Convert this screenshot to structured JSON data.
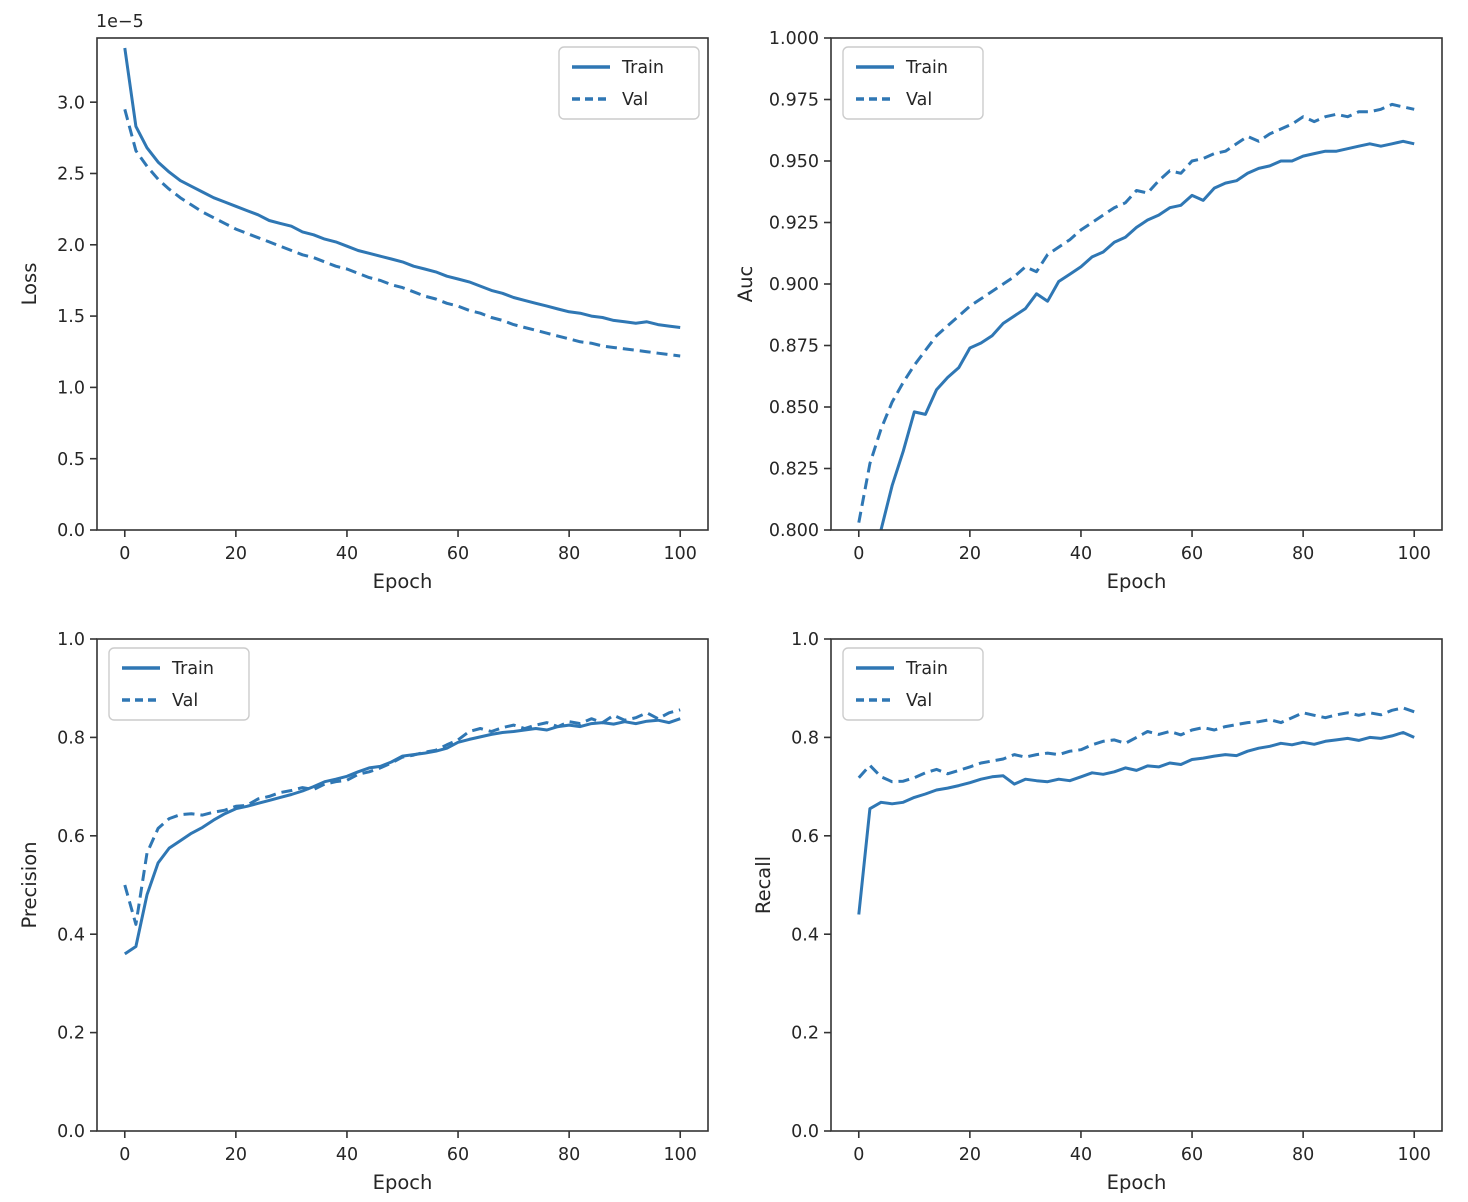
{
  "figure": {
    "background": "#ffffff",
    "line_color": "#2f77b4",
    "text_color": "#262626",
    "spine_color": "#333333",
    "legend_border_color": "#cccccc"
  },
  "chart_data": [
    {
      "type": "line",
      "title": "",
      "xlabel": "Epoch",
      "ylabel": "Loss",
      "offset_text": "1e−5",
      "y_units": "1e-5",
      "grid": false,
      "legend_position": "upper-right",
      "xlim": [
        -5,
        105
      ],
      "ylim": [
        0,
        3.45
      ],
      "xticks": {
        "values": [
          0,
          20,
          40,
          60,
          80,
          100
        ],
        "labels": [
          "0",
          "20",
          "40",
          "60",
          "80",
          "100"
        ]
      },
      "yticks": {
        "values": [
          0,
          0.5,
          1.0,
          1.5,
          2.0,
          2.5,
          3.0
        ],
        "labels": [
          "0.0",
          "0.5",
          "1.0",
          "1.5",
          "2.0",
          "2.5",
          "3.0"
        ]
      },
      "x": [
        0,
        2,
        4,
        6,
        8,
        10,
        12,
        14,
        16,
        18,
        20,
        22,
        24,
        26,
        28,
        30,
        32,
        34,
        36,
        38,
        40,
        42,
        44,
        46,
        48,
        50,
        52,
        54,
        56,
        58,
        60,
        62,
        64,
        66,
        68,
        70,
        72,
        74,
        76,
        78,
        80,
        82,
        84,
        86,
        88,
        90,
        92,
        94,
        96,
        98,
        100
      ],
      "series": [
        {
          "name": "Train",
          "style": "solid",
          "y": [
            3.38,
            2.83,
            2.68,
            2.58,
            2.51,
            2.45,
            2.41,
            2.37,
            2.33,
            2.3,
            2.27,
            2.24,
            2.21,
            2.17,
            2.15,
            2.13,
            2.09,
            2.07,
            2.04,
            2.02,
            1.99,
            1.96,
            1.94,
            1.92,
            1.9,
            1.88,
            1.85,
            1.83,
            1.81,
            1.78,
            1.76,
            1.74,
            1.71,
            1.68,
            1.66,
            1.63,
            1.61,
            1.59,
            1.57,
            1.55,
            1.53,
            1.52,
            1.5,
            1.49,
            1.47,
            1.46,
            1.45,
            1.46,
            1.44,
            1.43,
            1.42
          ]
        },
        {
          "name": "Val",
          "style": "dashed",
          "y": [
            2.95,
            2.66,
            2.55,
            2.46,
            2.39,
            2.33,
            2.28,
            2.23,
            2.19,
            2.15,
            2.11,
            2.08,
            2.05,
            2.02,
            1.99,
            1.96,
            1.93,
            1.91,
            1.88,
            1.85,
            1.83,
            1.8,
            1.77,
            1.75,
            1.72,
            1.7,
            1.67,
            1.64,
            1.62,
            1.59,
            1.57,
            1.54,
            1.52,
            1.49,
            1.47,
            1.44,
            1.42,
            1.4,
            1.38,
            1.36,
            1.34,
            1.32,
            1.31,
            1.29,
            1.28,
            1.27,
            1.26,
            1.25,
            1.24,
            1.23,
            1.22
          ]
        }
      ]
    },
    {
      "type": "line",
      "title": "",
      "xlabel": "Epoch",
      "ylabel": "Auc",
      "offset_text": "",
      "grid": false,
      "legend_position": "upper-left",
      "xlim": [
        -5,
        105
      ],
      "ylim": [
        0.8,
        1.0
      ],
      "xticks": {
        "values": [
          0,
          20,
          40,
          60,
          80,
          100
        ],
        "labels": [
          "0",
          "20",
          "40",
          "60",
          "80",
          "100"
        ]
      },
      "yticks": {
        "values": [
          0.8,
          0.825,
          0.85,
          0.875,
          0.9,
          0.925,
          0.95,
          0.975,
          1.0
        ],
        "labels": [
          "0.800",
          "0.825",
          "0.850",
          "0.875",
          "0.900",
          "0.925",
          "0.950",
          "0.975",
          "1.000"
        ]
      },
      "x": [
        0,
        2,
        4,
        6,
        8,
        10,
        12,
        14,
        16,
        18,
        20,
        22,
        24,
        26,
        28,
        30,
        32,
        34,
        36,
        38,
        40,
        42,
        44,
        46,
        48,
        50,
        52,
        54,
        56,
        58,
        60,
        62,
        64,
        66,
        68,
        70,
        72,
        74,
        76,
        78,
        80,
        82,
        84,
        86,
        88,
        90,
        92,
        94,
        96,
        98,
        100
      ],
      "series": [
        {
          "name": "Train",
          "style": "solid",
          "y": [
            0.778,
            0.79,
            0.8,
            0.818,
            0.832,
            0.848,
            0.847,
            0.857,
            0.862,
            0.866,
            0.874,
            0.876,
            0.879,
            0.884,
            0.887,
            0.89,
            0.896,
            0.893,
            0.901,
            0.904,
            0.907,
            0.911,
            0.913,
            0.917,
            0.919,
            0.923,
            0.926,
            0.928,
            0.931,
            0.932,
            0.936,
            0.934,
            0.939,
            0.941,
            0.942,
            0.945,
            0.947,
            0.948,
            0.95,
            0.95,
            0.952,
            0.953,
            0.954,
            0.954,
            0.955,
            0.956,
            0.957,
            0.956,
            0.957,
            0.958,
            0.957
          ]
        },
        {
          "name": "Val",
          "style": "dashed",
          "y": [
            0.803,
            0.827,
            0.841,
            0.852,
            0.86,
            0.867,
            0.873,
            0.879,
            0.883,
            0.887,
            0.891,
            0.894,
            0.897,
            0.9,
            0.903,
            0.907,
            0.905,
            0.912,
            0.915,
            0.918,
            0.922,
            0.925,
            0.928,
            0.931,
            0.933,
            0.938,
            0.937,
            0.942,
            0.946,
            0.945,
            0.95,
            0.951,
            0.953,
            0.954,
            0.957,
            0.96,
            0.958,
            0.961,
            0.963,
            0.965,
            0.968,
            0.966,
            0.968,
            0.969,
            0.968,
            0.97,
            0.97,
            0.971,
            0.973,
            0.972,
            0.971
          ]
        }
      ]
    },
    {
      "type": "line",
      "title": "",
      "xlabel": "Epoch",
      "ylabel": "Precision",
      "offset_text": "",
      "grid": false,
      "legend_position": "upper-left",
      "xlim": [
        -5,
        105
      ],
      "ylim": [
        0.0,
        1.0
      ],
      "xticks": {
        "values": [
          0,
          20,
          40,
          60,
          80,
          100
        ],
        "labels": [
          "0",
          "20",
          "40",
          "60",
          "80",
          "100"
        ]
      },
      "yticks": {
        "values": [
          0.0,
          0.2,
          0.4,
          0.6,
          0.8,
          1.0
        ],
        "labels": [
          "0.0",
          "0.2",
          "0.4",
          "0.6",
          "0.8",
          "1.0"
        ]
      },
      "x": [
        0,
        2,
        4,
        6,
        8,
        10,
        12,
        14,
        16,
        18,
        20,
        22,
        24,
        26,
        28,
        30,
        32,
        34,
        36,
        38,
        40,
        42,
        44,
        46,
        48,
        50,
        52,
        54,
        56,
        58,
        60,
        62,
        64,
        66,
        68,
        70,
        72,
        74,
        76,
        78,
        80,
        82,
        84,
        86,
        88,
        90,
        92,
        94,
        96,
        98,
        100
      ],
      "series": [
        {
          "name": "Train",
          "style": "solid",
          "y": [
            0.36,
            0.375,
            0.48,
            0.545,
            0.575,
            0.59,
            0.605,
            0.617,
            0.632,
            0.645,
            0.655,
            0.66,
            0.666,
            0.672,
            0.678,
            0.684,
            0.691,
            0.7,
            0.71,
            0.715,
            0.721,
            0.73,
            0.738,
            0.741,
            0.75,
            0.762,
            0.765,
            0.768,
            0.772,
            0.778,
            0.79,
            0.796,
            0.801,
            0.806,
            0.81,
            0.812,
            0.815,
            0.818,
            0.815,
            0.822,
            0.825,
            0.822,
            0.828,
            0.83,
            0.827,
            0.832,
            0.828,
            0.833,
            0.835,
            0.83,
            0.838
          ]
        },
        {
          "name": "Val",
          "style": "dashed",
          "y": [
            0.5,
            0.42,
            0.565,
            0.615,
            0.635,
            0.643,
            0.645,
            0.642,
            0.648,
            0.652,
            0.66,
            0.662,
            0.675,
            0.68,
            0.688,
            0.692,
            0.698,
            0.694,
            0.705,
            0.71,
            0.713,
            0.725,
            0.73,
            0.738,
            0.748,
            0.76,
            0.764,
            0.77,
            0.774,
            0.785,
            0.795,
            0.812,
            0.818,
            0.812,
            0.82,
            0.825,
            0.818,
            0.825,
            0.83,
            0.822,
            0.832,
            0.828,
            0.838,
            0.83,
            0.845,
            0.835,
            0.84,
            0.85,
            0.838,
            0.85,
            0.856
          ]
        }
      ]
    },
    {
      "type": "line",
      "title": "",
      "xlabel": "Epoch",
      "ylabel": "Recall",
      "offset_text": "",
      "grid": false,
      "legend_position": "upper-left",
      "xlim": [
        -5,
        105
      ],
      "ylim": [
        0.0,
        1.0
      ],
      "xticks": {
        "values": [
          0,
          20,
          40,
          60,
          80,
          100
        ],
        "labels": [
          "0",
          "20",
          "40",
          "60",
          "80",
          "100"
        ]
      },
      "yticks": {
        "values": [
          0.0,
          0.2,
          0.4,
          0.6,
          0.8,
          1.0
        ],
        "labels": [
          "0.0",
          "0.2",
          "0.4",
          "0.6",
          "0.8",
          "1.0"
        ]
      },
      "x": [
        0,
        2,
        4,
        6,
        8,
        10,
        12,
        14,
        16,
        18,
        20,
        22,
        24,
        26,
        28,
        30,
        32,
        34,
        36,
        38,
        40,
        42,
        44,
        46,
        48,
        50,
        52,
        54,
        56,
        58,
        60,
        62,
        64,
        66,
        68,
        70,
        72,
        74,
        76,
        78,
        80,
        82,
        84,
        86,
        88,
        90,
        92,
        94,
        96,
        98,
        100
      ],
      "series": [
        {
          "name": "Train",
          "style": "solid",
          "y": [
            0.44,
            0.655,
            0.668,
            0.665,
            0.668,
            0.678,
            0.685,
            0.693,
            0.697,
            0.702,
            0.708,
            0.715,
            0.72,
            0.722,
            0.705,
            0.715,
            0.712,
            0.71,
            0.715,
            0.712,
            0.72,
            0.728,
            0.725,
            0.73,
            0.738,
            0.733,
            0.742,
            0.74,
            0.748,
            0.745,
            0.755,
            0.758,
            0.762,
            0.765,
            0.763,
            0.772,
            0.778,
            0.782,
            0.788,
            0.785,
            0.79,
            0.786,
            0.792,
            0.795,
            0.798,
            0.794,
            0.8,
            0.798,
            0.803,
            0.81,
            0.8
          ]
        },
        {
          "name": "Val",
          "style": "dashed",
          "y": [
            0.718,
            0.743,
            0.72,
            0.71,
            0.711,
            0.718,
            0.728,
            0.735,
            0.726,
            0.733,
            0.74,
            0.748,
            0.752,
            0.756,
            0.765,
            0.76,
            0.765,
            0.768,
            0.765,
            0.772,
            0.775,
            0.785,
            0.792,
            0.795,
            0.788,
            0.8,
            0.812,
            0.806,
            0.812,
            0.805,
            0.815,
            0.82,
            0.815,
            0.822,
            0.826,
            0.83,
            0.832,
            0.836,
            0.83,
            0.84,
            0.85,
            0.845,
            0.84,
            0.846,
            0.85,
            0.845,
            0.85,
            0.846,
            0.855,
            0.86,
            0.852
          ]
        }
      ]
    }
  ]
}
